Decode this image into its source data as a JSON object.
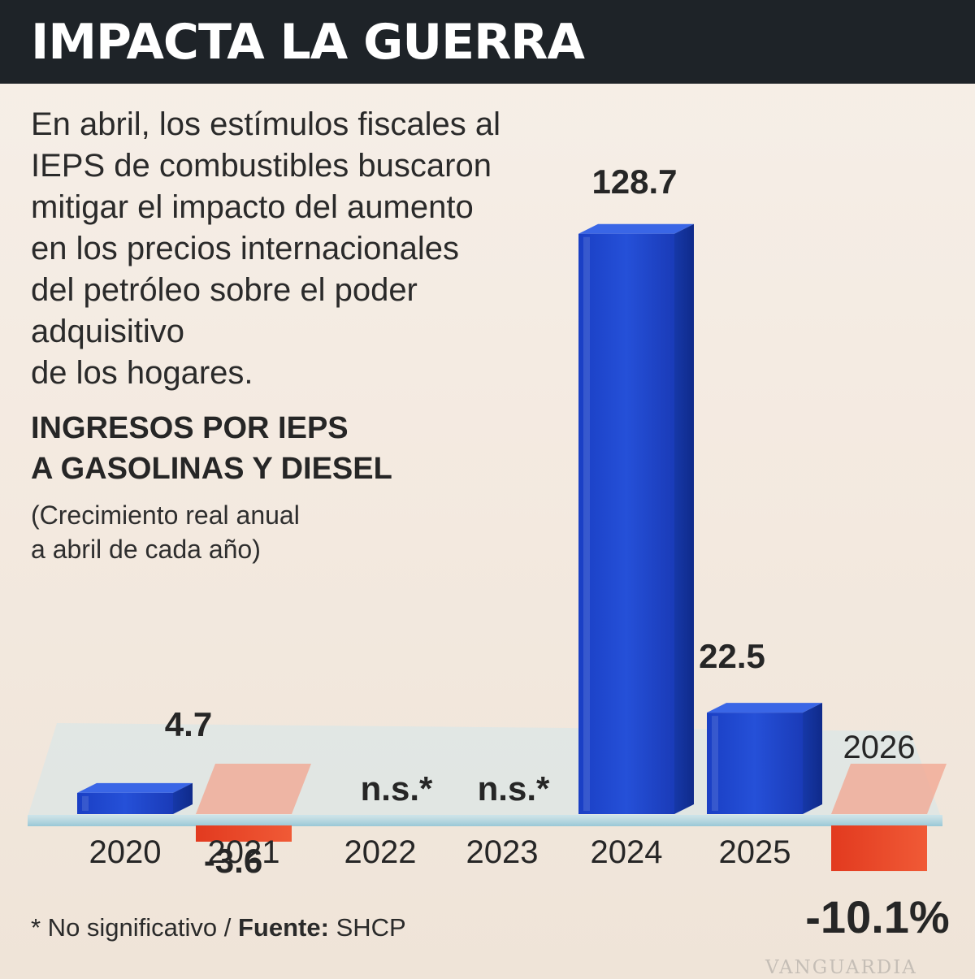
{
  "header": {
    "title": "IMPACTA LA GUERRA"
  },
  "intro": "En abril, los estímulos fiscales al IEPS de combustibles buscaron mitigar el impacto del aumento en los precios internacionales del petróleo sobre el poder adquisitivo de los hogares.",
  "intro_lines": [
    "En abril, los estímulos fiscales al",
    "IEPS de combustibles buscaron",
    "mitigar el impacto del aumento",
    "en los precios internacionales",
    "del petróleo sobre el poder",
    "adquisitivo",
    "de los hogares."
  ],
  "footnote": {
    "note": "* No significativo",
    "separator": " / ",
    "source_label": "Fuente:",
    "source": "SHCP"
  },
  "watermark": "VANGUARDIA",
  "colors": {
    "header_bg": "#1e2328",
    "positive": "#1f45c8",
    "negative": "#e8472a",
    "negative_light": "#f2a48f",
    "baseline": "#a9d3e0"
  },
  "chart_data": {
    "type": "bar",
    "title": "INGRESOS POR IEPS A GASOLINAS Y DIESEL",
    "title_lines": [
      "INGRESOS POR IEPS",
      "A GASOLINAS Y DIESEL"
    ],
    "subtitle": "(Crecimiento real anual a abril de cada año)",
    "subtitle_lines": [
      "(Crecimiento real anual",
      "a abril de cada año)"
    ],
    "unit": "%",
    "categories": [
      "2020",
      "2021",
      "2022",
      "2023",
      "2024",
      "2025",
      "2026"
    ],
    "values": [
      4.7,
      -3.6,
      null,
      null,
      128.7,
      22.5,
      -10.1
    ],
    "value_labels": [
      "4.7",
      "-3.6",
      "n.s.*",
      "n.s.*",
      "128.7",
      "22.5",
      "-10.1%"
    ],
    "ylim": [
      -12,
      130
    ],
    "grid": false,
    "legend": "none"
  }
}
